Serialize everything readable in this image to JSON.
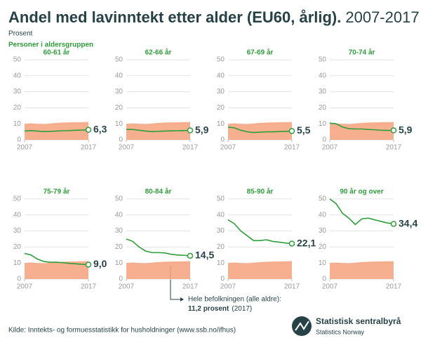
{
  "title": "Andel med lavinntekt etter alder (EU60, årlig).",
  "title_period": "2007-2017",
  "subtitle": "Prosent",
  "legend_label": "Personer i aldersgruppen",
  "annotation": {
    "text": "Hele befolkningen (alle aldre):",
    "value_text": "11,2 prosent",
    "year_text": "(2017)"
  },
  "source": "Kilde: Inntekts- og formuesstatistikk for husholdninger (www.ssb.no/ifhus)",
  "logo": {
    "name": "Statistisk sentralbyrå",
    "name_en": "Statistics Norway"
  },
  "chart_data": [
    {
      "type": "line",
      "title": "60-61 år",
      "x": [
        2007,
        2008,
        2009,
        2010,
        2011,
        2012,
        2013,
        2014,
        2015,
        2016,
        2017
      ],
      "xlim": [
        2007,
        2017
      ],
      "xticks": [
        2007,
        2017
      ],
      "ylim": [
        0,
        50
      ],
      "yticks": [
        0,
        10,
        20,
        30,
        40,
        50
      ],
      "grid": true,
      "series": [
        {
          "kind": "area",
          "color": "#f5a27c",
          "values": [
            10.0,
            10.3,
            10.0,
            9.8,
            10.2,
            10.6,
            10.8,
            10.9,
            11.0,
            11.1,
            11.2
          ]
        },
        {
          "kind": "line",
          "color": "#2e9e3a",
          "values": [
            5.5,
            5.8,
            5.5,
            5.2,
            5.3,
            5.5,
            5.7,
            5.8,
            6.0,
            6.1,
            6.3
          ],
          "value_labels": [
            null,
            null,
            null,
            null,
            null,
            null,
            null,
            null,
            null,
            null,
            "6,3"
          ]
        }
      ]
    },
    {
      "type": "line",
      "title": "62-66 år",
      "x": [
        2007,
        2008,
        2009,
        2010,
        2011,
        2012,
        2013,
        2014,
        2015,
        2016,
        2017
      ],
      "xlim": [
        2007,
        2017
      ],
      "xticks": [
        2007,
        2017
      ],
      "ylim": [
        0,
        50
      ],
      "yticks": [
        0,
        10,
        20,
        30,
        40,
        50
      ],
      "grid": true,
      "series": [
        {
          "kind": "area",
          "color": "#f5a27c",
          "values": [
            10.0,
            10.3,
            10.0,
            9.8,
            10.2,
            10.6,
            10.8,
            10.9,
            11.0,
            11.1,
            11.2
          ]
        },
        {
          "kind": "line",
          "color": "#2e9e3a",
          "values": [
            6.5,
            6.5,
            6.0,
            5.5,
            5.2,
            5.3,
            5.5,
            5.6,
            5.7,
            5.8,
            5.9
          ],
          "value_labels": [
            null,
            null,
            null,
            null,
            null,
            null,
            null,
            null,
            null,
            null,
            "5,9"
          ]
        }
      ]
    },
    {
      "type": "line",
      "title": "67-69 år",
      "x": [
        2007,
        2008,
        2009,
        2010,
        2011,
        2012,
        2013,
        2014,
        2015,
        2016,
        2017
      ],
      "xlim": [
        2007,
        2017
      ],
      "xticks": [
        2007,
        2017
      ],
      "ylim": [
        0,
        50
      ],
      "yticks": [
        0,
        10,
        20,
        30,
        40,
        50
      ],
      "grid": true,
      "series": [
        {
          "kind": "area",
          "color": "#f5a27c",
          "values": [
            10.0,
            10.3,
            10.0,
            9.8,
            10.2,
            10.6,
            10.8,
            10.9,
            11.0,
            11.1,
            11.2
          ]
        },
        {
          "kind": "line",
          "color": "#2e9e3a",
          "values": [
            8.0,
            7.5,
            6.0,
            5.0,
            4.6,
            4.8,
            5.0,
            5.0,
            5.2,
            5.3,
            5.5
          ],
          "value_labels": [
            null,
            null,
            null,
            null,
            null,
            null,
            null,
            null,
            null,
            null,
            "5,5"
          ]
        }
      ]
    },
    {
      "type": "line",
      "title": "70-74 år",
      "x": [
        2007,
        2008,
        2009,
        2010,
        2011,
        2012,
        2013,
        2014,
        2015,
        2016,
        2017
      ],
      "xlim": [
        2007,
        2017
      ],
      "xticks": [
        2007,
        2017
      ],
      "ylim": [
        0,
        50
      ],
      "yticks": [
        0,
        10,
        20,
        30,
        40,
        50
      ],
      "grid": true,
      "series": [
        {
          "kind": "area",
          "color": "#f5a27c",
          "values": [
            10.0,
            10.3,
            10.0,
            9.8,
            10.2,
            10.6,
            10.8,
            10.9,
            11.0,
            11.1,
            11.2
          ]
        },
        {
          "kind": "line",
          "color": "#2e9e3a",
          "values": [
            10.5,
            10.0,
            8.0,
            7.0,
            6.8,
            6.8,
            6.5,
            6.3,
            6.0,
            5.9,
            5.9
          ],
          "value_labels": [
            null,
            null,
            null,
            null,
            null,
            null,
            null,
            null,
            null,
            null,
            "5,9"
          ]
        }
      ]
    },
    {
      "type": "line",
      "title": "75-79 år",
      "x": [
        2007,
        2008,
        2009,
        2010,
        2011,
        2012,
        2013,
        2014,
        2015,
        2016,
        2017
      ],
      "xlim": [
        2007,
        2017
      ],
      "xticks": [
        2007,
        2017
      ],
      "ylim": [
        0,
        50
      ],
      "yticks": [
        0,
        10,
        20,
        30,
        40,
        50
      ],
      "grid": true,
      "series": [
        {
          "kind": "area",
          "color": "#f5a27c",
          "values": [
            10.0,
            10.3,
            10.0,
            9.8,
            10.2,
            10.6,
            10.8,
            10.9,
            11.0,
            11.1,
            11.2
          ]
        },
        {
          "kind": "line",
          "color": "#2e9e3a",
          "values": [
            16.0,
            15.0,
            12.5,
            11.0,
            10.5,
            10.5,
            10.2,
            9.8,
            9.5,
            9.2,
            9.0
          ],
          "value_labels": [
            null,
            null,
            null,
            null,
            null,
            null,
            null,
            null,
            null,
            null,
            "9,0"
          ]
        }
      ]
    },
    {
      "type": "line",
      "title": "80-84 år",
      "x": [
        2007,
        2008,
        2009,
        2010,
        2011,
        2012,
        2013,
        2014,
        2015,
        2016,
        2017
      ],
      "xlim": [
        2007,
        2017
      ],
      "xticks": [
        2007,
        2017
      ],
      "ylim": [
        0,
        50
      ],
      "yticks": [
        0,
        10,
        20,
        30,
        40,
        50
      ],
      "grid": true,
      "series": [
        {
          "kind": "area",
          "color": "#f5a27c",
          "values": [
            10.0,
            10.3,
            10.0,
            9.8,
            10.2,
            10.6,
            10.8,
            10.9,
            11.0,
            11.1,
            11.2
          ]
        },
        {
          "kind": "line",
          "color": "#2e9e3a",
          "values": [
            25.0,
            23.5,
            20.0,
            17.5,
            16.5,
            16.5,
            16.3,
            15.5,
            15.0,
            14.8,
            14.5
          ],
          "value_labels": [
            null,
            null,
            null,
            null,
            null,
            null,
            null,
            null,
            null,
            null,
            "14,5"
          ]
        }
      ]
    },
    {
      "type": "line",
      "title": "85-90 år",
      "x": [
        2007,
        2008,
        2009,
        2010,
        2011,
        2012,
        2013,
        2014,
        2015,
        2016,
        2017
      ],
      "xlim": [
        2007,
        2017
      ],
      "xticks": [
        2007,
        2017
      ],
      "ylim": [
        0,
        50
      ],
      "yticks": [
        0,
        10,
        20,
        30,
        40,
        50
      ],
      "grid": true,
      "series": [
        {
          "kind": "area",
          "color": "#f5a27c",
          "values": [
            10.0,
            10.3,
            10.0,
            9.8,
            10.2,
            10.6,
            10.8,
            10.9,
            11.0,
            11.1,
            11.2
          ]
        },
        {
          "kind": "line",
          "color": "#2e9e3a",
          "values": [
            37.0,
            34.5,
            30.0,
            27.0,
            24.0,
            24.0,
            24.5,
            23.5,
            23.0,
            22.5,
            22.1
          ],
          "value_labels": [
            null,
            null,
            null,
            null,
            null,
            null,
            null,
            null,
            null,
            null,
            "22,1"
          ]
        }
      ]
    },
    {
      "type": "line",
      "title": "90 år og over",
      "x": [
        2007,
        2008,
        2009,
        2010,
        2011,
        2012,
        2013,
        2014,
        2015,
        2016,
        2017
      ],
      "xlim": [
        2007,
        2017
      ],
      "xticks": [
        2007,
        2017
      ],
      "ylim": [
        0,
        50
      ],
      "yticks": [
        0,
        10,
        20,
        30,
        40,
        50
      ],
      "grid": true,
      "series": [
        {
          "kind": "area",
          "color": "#f5a27c",
          "values": [
            10.0,
            10.3,
            10.0,
            9.8,
            10.2,
            10.6,
            10.8,
            10.9,
            11.0,
            11.1,
            11.2
          ]
        },
        {
          "kind": "line",
          "color": "#2e9e3a",
          "values": [
            50.0,
            47.0,
            41.0,
            38.0,
            34.0,
            37.5,
            38.0,
            37.0,
            36.0,
            35.0,
            34.4
          ],
          "value_labels": [
            null,
            null,
            null,
            null,
            null,
            null,
            null,
            null,
            null,
            null,
            "34,4"
          ]
        }
      ]
    }
  ]
}
